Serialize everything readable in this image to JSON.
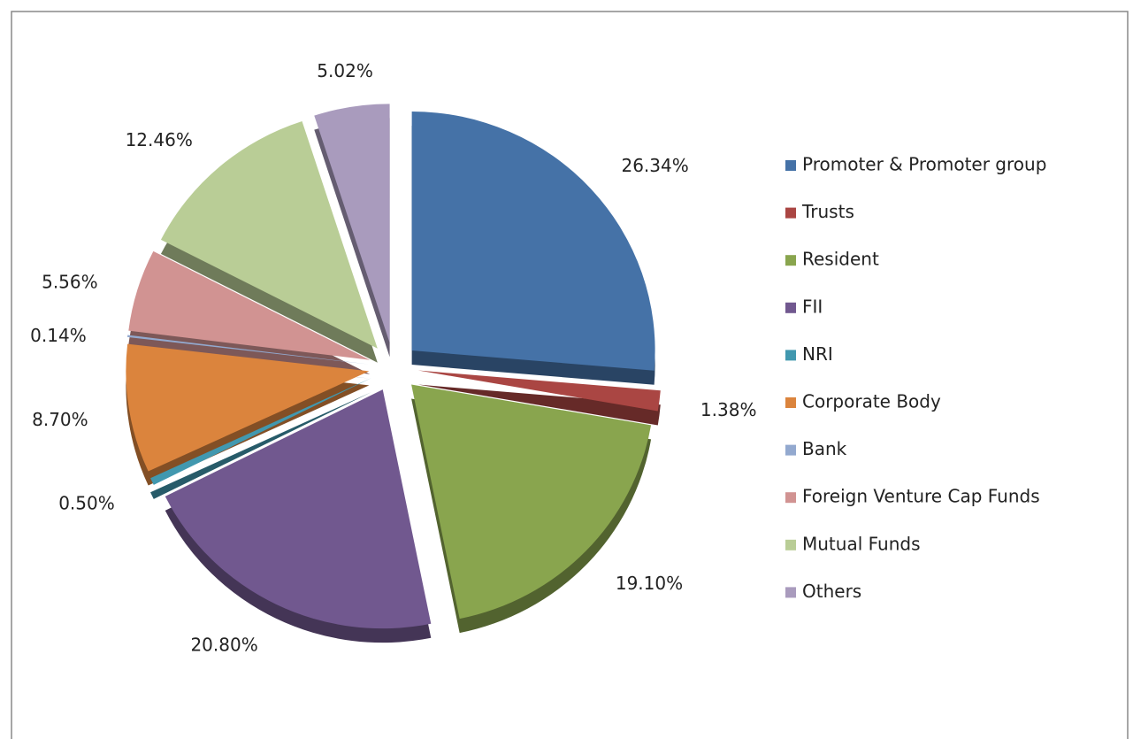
{
  "chart_data": {
    "type": "pie",
    "categories": [
      "Promoter & Promoter group",
      "Trusts",
      "Resident",
      "FII",
      "NRI",
      "Corporate Body",
      "Bank",
      "Foreign Venture Cap Funds",
      "Mutual Funds",
      "Others"
    ],
    "values": [
      26.34,
      1.38,
      19.1,
      20.8,
      0.5,
      8.7,
      0.14,
      5.56,
      12.46,
      5.02
    ],
    "value_labels": [
      "26.34%",
      "1.38%",
      "19.10%",
      "20.80%",
      "0.50%",
      "8.70%",
      "0.14%",
      "5.56%",
      "12.46%",
      "5.02%"
    ],
    "colors": [
      "#4572a7",
      "#aa4643",
      "#89a54e",
      "#71588f",
      "#4198af",
      "#db843d",
      "#93a9cf",
      "#d19392",
      "#b9cd96",
      "#a99bbd"
    ],
    "legend": "right"
  }
}
